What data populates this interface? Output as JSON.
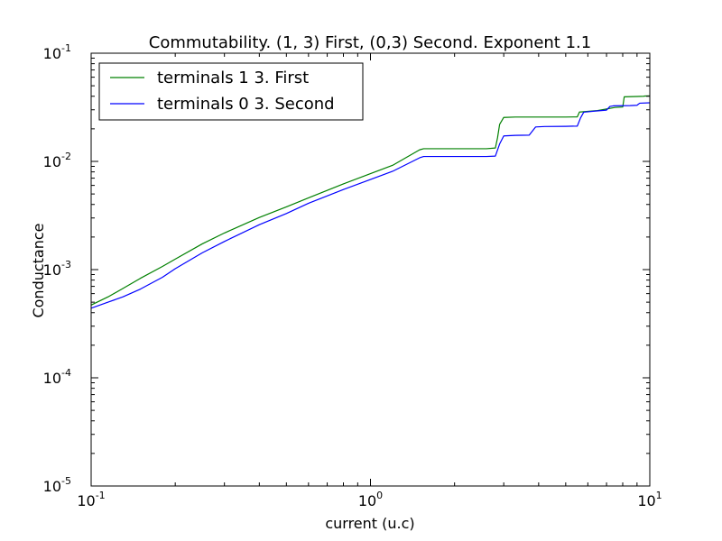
{
  "chart_data": {
    "type": "line",
    "title": "Commutability. (1, 3) First, (0,3) Second. Exponent 1.1",
    "xlabel": "current (u.c)",
    "ylabel": "Conductance",
    "x_scale": "log",
    "y_scale": "log",
    "xlim": [
      0.1,
      10
    ],
    "ylim": [
      1e-05,
      0.1
    ],
    "grid": false,
    "legend_position": "top-left",
    "x_ticks": [
      {
        "value": 0.1,
        "base": "10",
        "exp": "-1"
      },
      {
        "value": 1,
        "base": "10",
        "exp": "0"
      },
      {
        "value": 10,
        "base": "10",
        "exp": "1"
      }
    ],
    "y_ticks": [
      {
        "value": 1e-05,
        "base": "10",
        "exp": "-5"
      },
      {
        "value": 0.0001,
        "base": "10",
        "exp": "-4"
      },
      {
        "value": 0.001,
        "base": "10",
        "exp": "-3"
      },
      {
        "value": 0.01,
        "base": "10",
        "exp": "-2"
      },
      {
        "value": 0.1,
        "base": "10",
        "exp": "-1"
      }
    ],
    "series": [
      {
        "name": "terminals 1 3. First",
        "color": "#008000",
        "x": [
          0.1,
          0.115,
          0.13,
          0.15,
          0.18,
          0.2,
          0.25,
          0.3,
          0.4,
          0.5,
          0.6,
          0.8,
          1.0,
          1.2,
          1.5,
          1.55,
          1.8,
          2.2,
          2.6,
          2.8,
          2.85,
          2.9,
          3.0,
          3.3,
          4.0,
          5.0,
          5.5,
          5.6,
          6.5,
          7.5,
          8.0,
          8.1,
          9.0,
          9.5,
          9.6,
          10.0
        ],
        "y": [
          0.00047,
          0.00056,
          0.00067,
          0.00083,
          0.00107,
          0.00125,
          0.00173,
          0.00218,
          0.00303,
          0.0038,
          0.0046,
          0.0062,
          0.0077,
          0.0092,
          0.0128,
          0.0131,
          0.0131,
          0.0131,
          0.0131,
          0.0133,
          0.0165,
          0.022,
          0.0255,
          0.0257,
          0.0257,
          0.0257,
          0.0258,
          0.0286,
          0.0295,
          0.0315,
          0.0318,
          0.0395,
          0.0398,
          0.04,
          0.0402,
          0.0403
        ]
      },
      {
        "name": "terminals 0 3. Second",
        "color": "#0000ff",
        "x": [
          0.1,
          0.115,
          0.13,
          0.15,
          0.18,
          0.2,
          0.25,
          0.3,
          0.4,
          0.5,
          0.6,
          0.8,
          1.0,
          1.2,
          1.5,
          1.55,
          1.8,
          2.2,
          2.6,
          2.8,
          2.9,
          3.0,
          3.3,
          3.7,
          3.9,
          4.2,
          5.0,
          5.5,
          5.65,
          5.8,
          6.2,
          7.0,
          7.2,
          7.4,
          8.5,
          9.0,
          9.2,
          10.0
        ],
        "y": [
          0.00044,
          0.0005,
          0.00056,
          0.00066,
          0.00085,
          0.00102,
          0.00143,
          0.00182,
          0.0026,
          0.0033,
          0.0041,
          0.0055,
          0.0068,
          0.0081,
          0.0108,
          0.0111,
          0.0111,
          0.0111,
          0.0111,
          0.0112,
          0.0145,
          0.0172,
          0.0174,
          0.0175,
          0.0208,
          0.021,
          0.0211,
          0.0212,
          0.0252,
          0.0285,
          0.029,
          0.0298,
          0.0322,
          0.0326,
          0.0328,
          0.033,
          0.0345,
          0.0348
        ]
      }
    ]
  }
}
